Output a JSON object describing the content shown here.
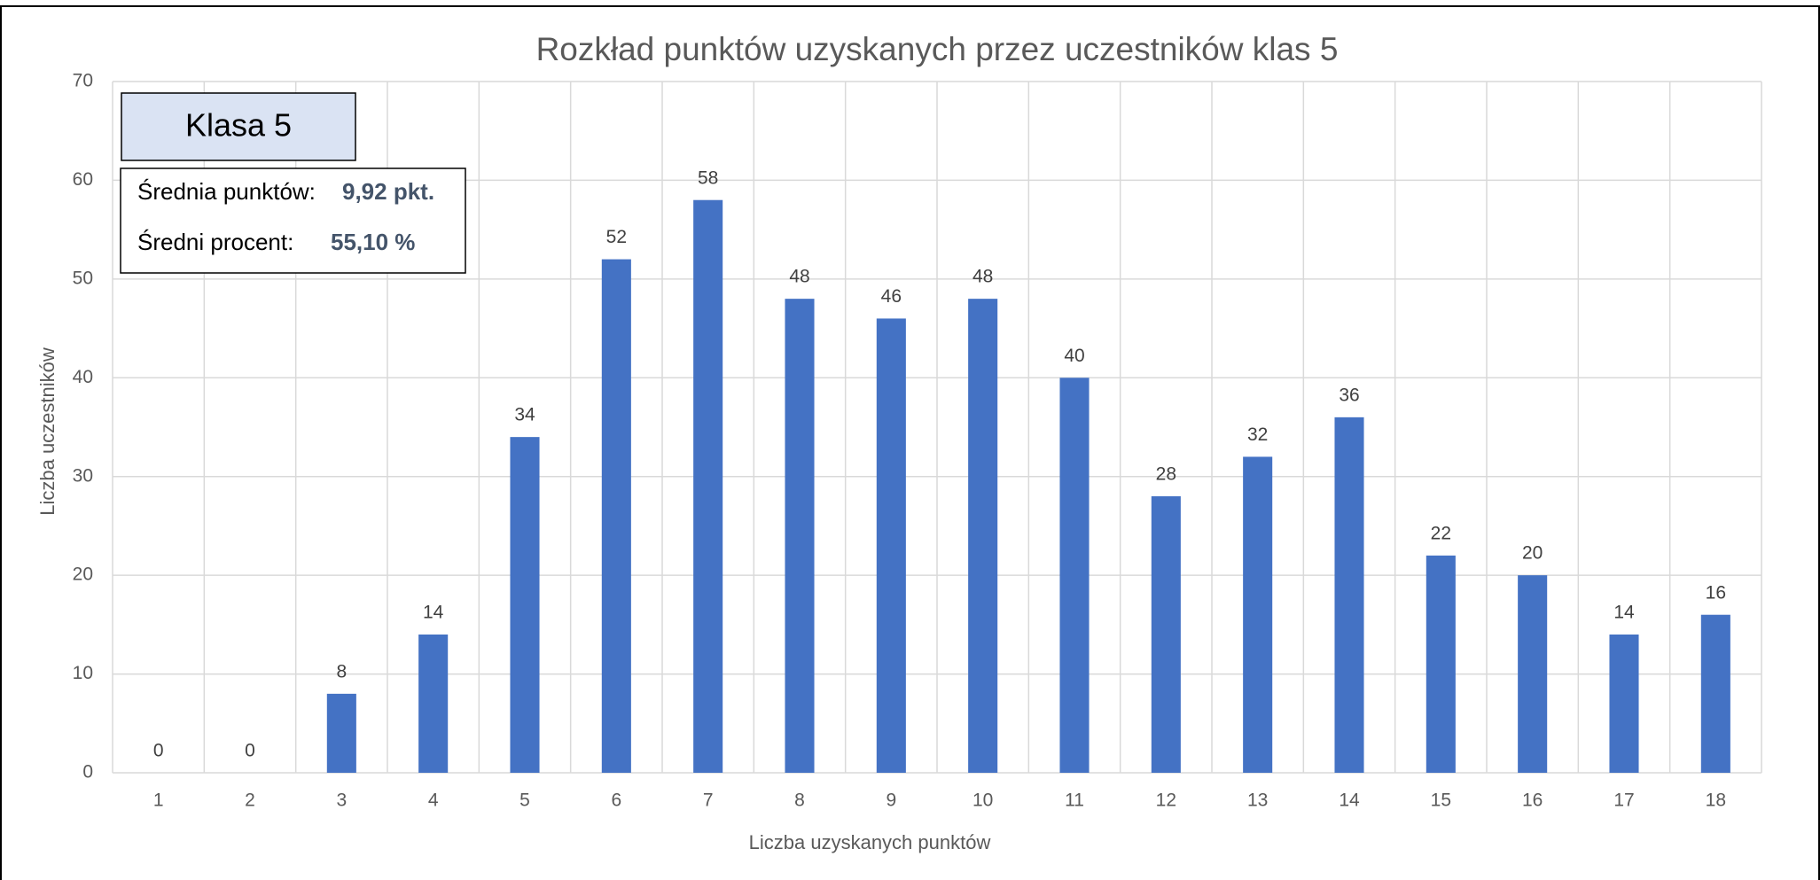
{
  "chart_data": {
    "type": "bar",
    "title": "Rozkład punktów uzyskanych przez uczestników klas 5",
    "x_label": "Liczba uzyskanych punktów",
    "y_label": "Liczba uczestników",
    "categories": [
      "1",
      "2",
      "3",
      "4",
      "5",
      "6",
      "7",
      "8",
      "9",
      "10",
      "11",
      "12",
      "13",
      "14",
      "15",
      "16",
      "17",
      "18"
    ],
    "values": [
      0,
      0,
      8,
      14,
      34,
      52,
      58,
      48,
      46,
      48,
      40,
      28,
      32,
      36,
      22,
      20,
      14,
      16
    ],
    "color": "#4472c4",
    "ylim": [
      0,
      70
    ],
    "yticks": [
      0,
      10,
      20,
      30,
      40,
      50,
      60,
      70
    ],
    "grid": true,
    "annotations": {
      "box_title": "Klasa 5",
      "mean_label": "Średnia punktów:",
      "mean_value": "9,92 pkt.",
      "percent_label": "Średni procent:",
      "percent_value": "55,10 %"
    }
  }
}
